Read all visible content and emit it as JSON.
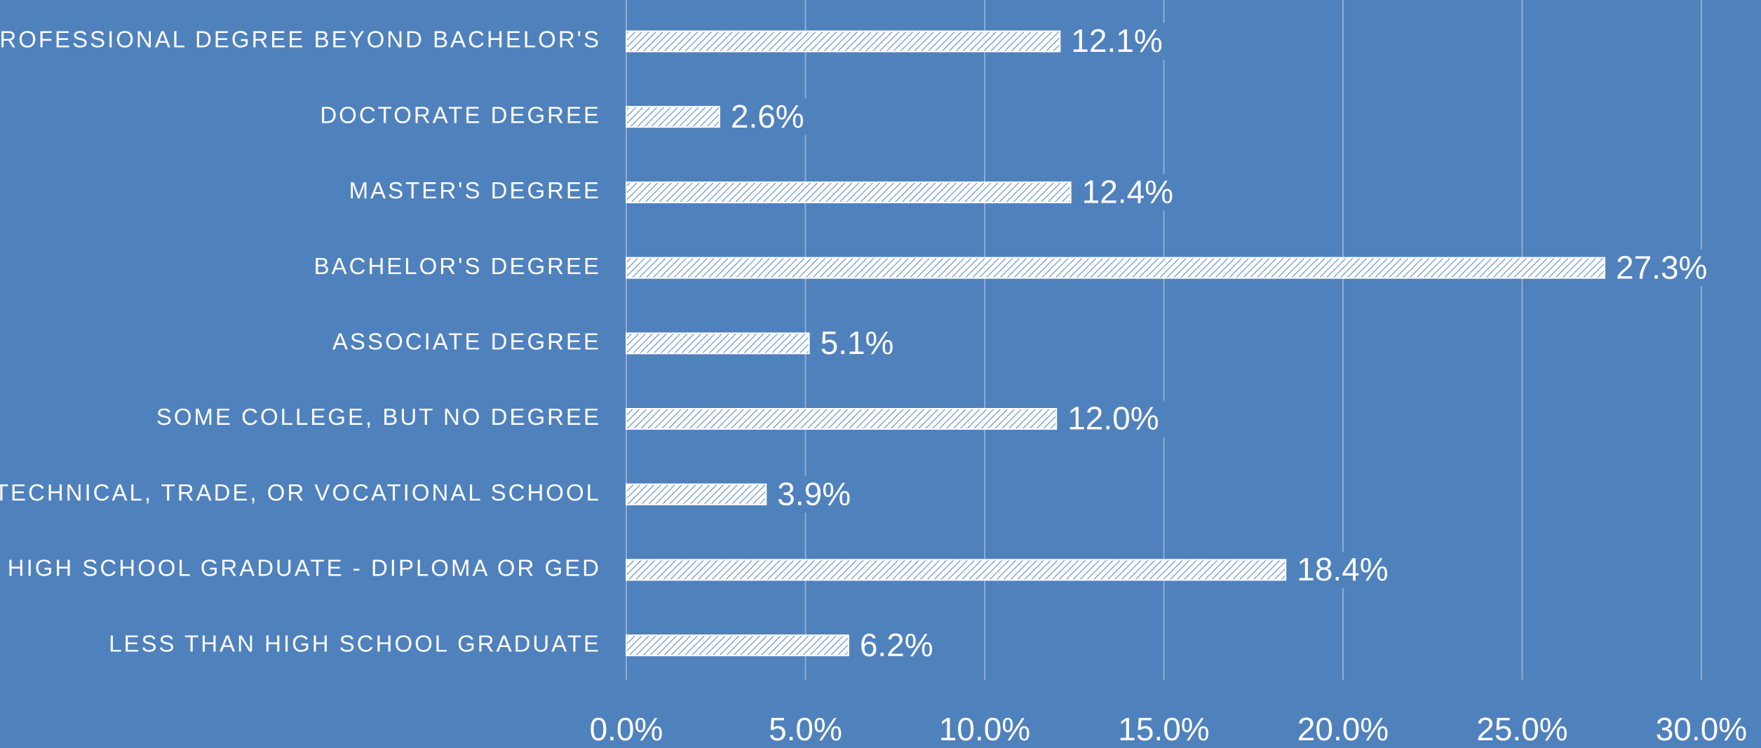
{
  "chart_data": {
    "type": "bar",
    "orientation": "horizontal",
    "categories": [
      "PROFESSIONAL DEGREE BEYOND BACHELOR'S",
      "DOCTORATE DEGREE",
      "MASTER'S DEGREE",
      "BACHELOR'S DEGREE",
      "ASSOCIATE DEGREE",
      "SOME COLLEGE, BUT NO DEGREE",
      "TECHNICAL, TRADE, OR VOCATIONAL SCHOOL",
      "HIGH SCHOOL GRADUATE - DIPLOMA OR GED",
      "LESS THAN HIGH SCHOOL GRADUATE"
    ],
    "values": [
      12.1,
      2.6,
      12.4,
      27.3,
      5.1,
      12.0,
      3.9,
      18.4,
      6.2
    ],
    "value_labels": [
      "12.1%",
      "2.6%",
      "12.4%",
      "27.3%",
      "5.1%",
      "12.0%",
      "3.9%",
      "18.4%",
      "6.2%"
    ],
    "color": "#ffffff",
    "xlim": [
      0,
      30
    ],
    "xticks": [
      {
        "value": 0,
        "label": "0.0%"
      },
      {
        "value": 5,
        "label": "5.0%"
      },
      {
        "value": 10,
        "label": "10.0%"
      },
      {
        "value": 15,
        "label": "15.0%"
      },
      {
        "value": 20,
        "label": "20.0%"
      },
      {
        "value": 25,
        "label": "25.0%"
      },
      {
        "value": 30,
        "label": "30.0%"
      }
    ],
    "grid": true
  }
}
